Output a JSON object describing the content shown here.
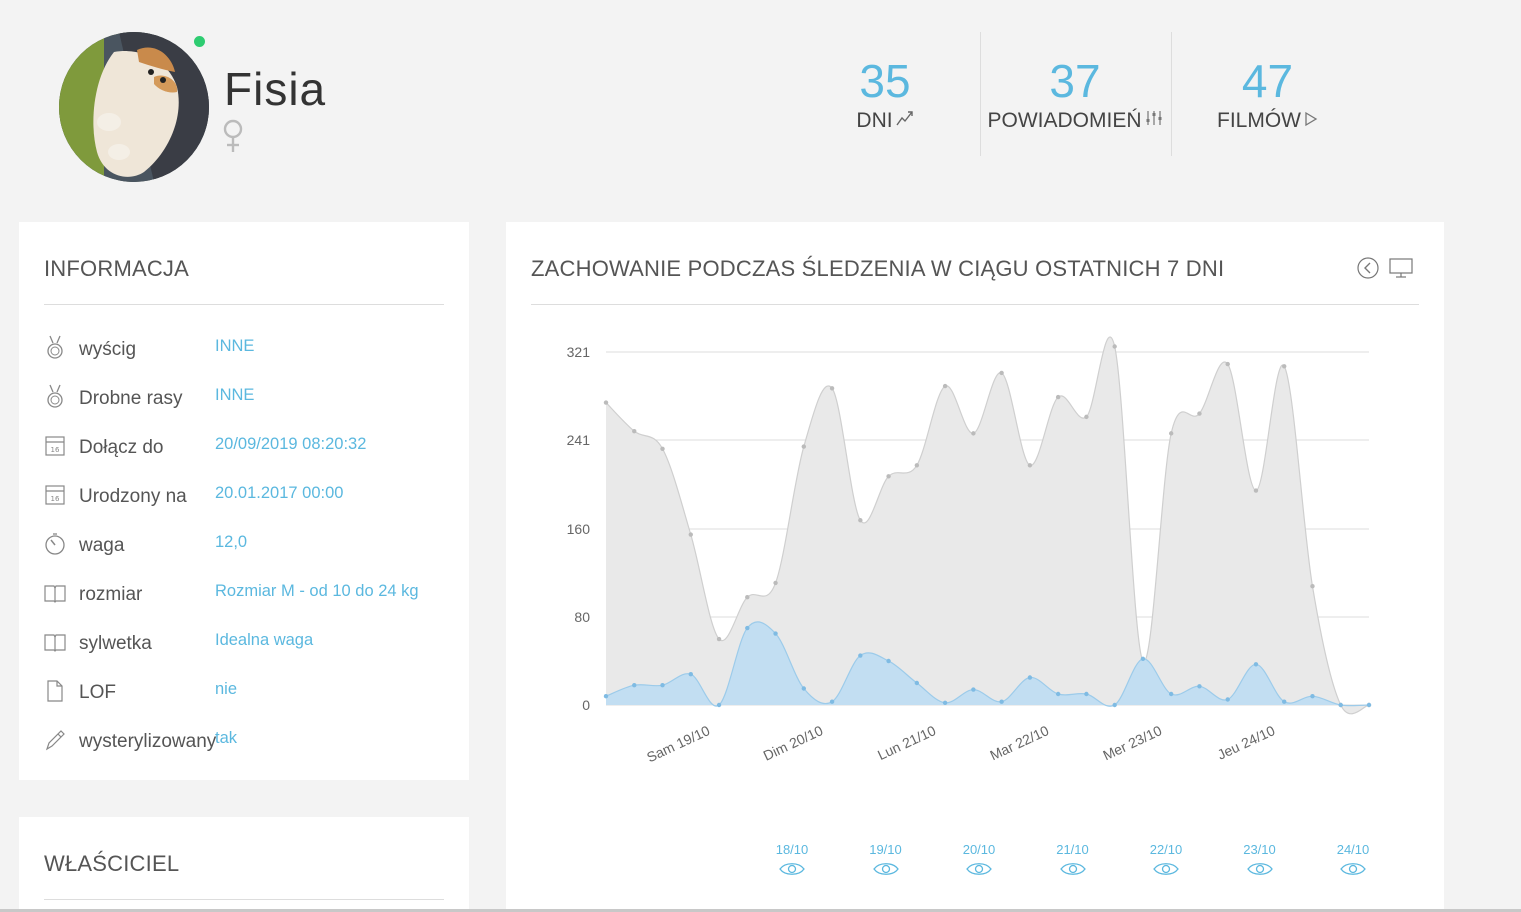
{
  "profile": {
    "name": "Fisia",
    "gender_icon": "female-icon",
    "online": true
  },
  "stats": [
    {
      "value": "35",
      "label": "DNI",
      "icon": "trend-icon"
    },
    {
      "value": "37",
      "label": "POWIADOMIEŃ",
      "icon": "sliders-icon"
    },
    {
      "value": "47",
      "label": "FILMÓW",
      "icon": "play-icon"
    }
  ],
  "info": {
    "title": "INFORMACJA",
    "rows": [
      {
        "icon": "medal-icon",
        "key": "wyścig",
        "value": "INNE"
      },
      {
        "icon": "medal-icon",
        "key": "Drobne rasy",
        "value": "INNE"
      },
      {
        "icon": "calendar-icon",
        "key": "Dołącz do",
        "value": "20/09/2019 08:20:32"
      },
      {
        "icon": "calendar-icon",
        "key": "Urodzony na",
        "value": "20.01.2017 00:00"
      },
      {
        "icon": "timer-icon",
        "key": "waga",
        "value": "12,0"
      },
      {
        "icon": "book-icon",
        "key": "rozmiar",
        "value": "Rozmiar M - od 10 do 24 kg"
      },
      {
        "icon": "book-icon",
        "key": "sylwetka",
        "value": "Idealna waga"
      },
      {
        "icon": "file-icon",
        "key": "LOF",
        "value": "nie"
      },
      {
        "icon": "pencil-icon",
        "key": "wysterylizowany",
        "value": "tak"
      }
    ]
  },
  "owner": {
    "title": "WŁAŚCICIEL"
  },
  "chart_panel": {
    "title": "ZACHOWANIE PODCZAS ŚLEDZENIA W CIĄGU OSTATNICH 7 DNI",
    "tools": [
      "back-icon",
      "monitor-icon"
    ],
    "day_links": [
      "18/10",
      "19/10",
      "20/10",
      "21/10",
      "22/10",
      "23/10",
      "24/10"
    ]
  },
  "chart_data": {
    "type": "area",
    "title": "",
    "xlabel": "",
    "ylabel": "",
    "ylim": [
      0,
      321
    ],
    "yticks": [
      0,
      80,
      160,
      241,
      321
    ],
    "xtick_labels": [
      "Sam 19/10",
      "Dim 20/10",
      "Lun 21/10",
      "Mar 22/10",
      "Mer 23/10",
      "Jeu 24/10"
    ],
    "grid": true,
    "colors": {
      "series1": "#e9e9e9",
      "series2": "#c2def2",
      "line2": "#9ccbea"
    },
    "series": [
      {
        "values": [
          275,
          249,
          233,
          155,
          60,
          98,
          111,
          235,
          288,
          168,
          208,
          218,
          290,
          247,
          302,
          218,
          280,
          262,
          326,
          40,
          247,
          265,
          310,
          195,
          308,
          108,
          0,
          0
        ]
      },
      {
        "values": [
          8,
          18,
          18,
          28,
          0,
          70,
          65,
          15,
          3,
          45,
          40,
          20,
          2,
          14,
          3,
          25,
          10,
          10,
          0,
          42,
          10,
          17,
          5,
          37,
          3,
          8,
          0,
          0
        ]
      }
    ]
  }
}
